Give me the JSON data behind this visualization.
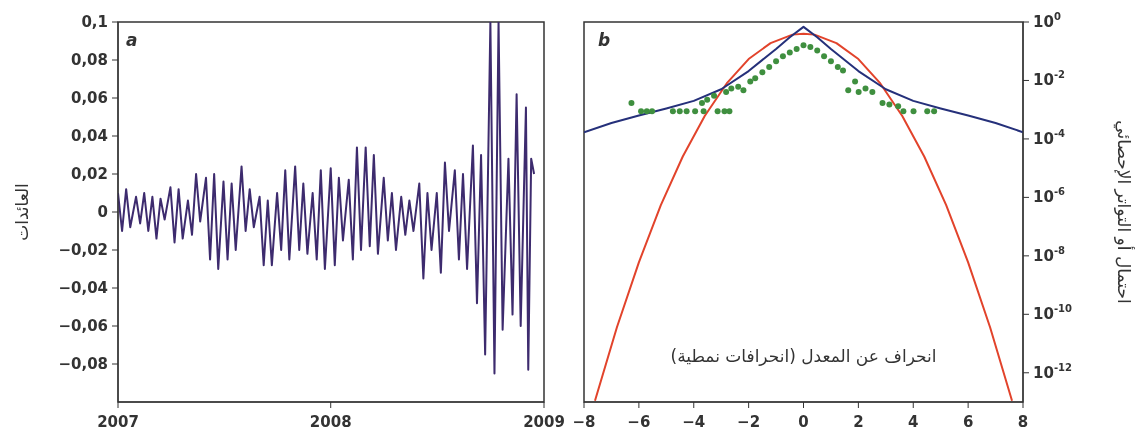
{
  "chart_data": [
    {
      "type": "line",
      "ylabel": "العائدات",
      "annotations": [
        "a"
      ],
      "xlim": [
        "2007",
        "2009"
      ],
      "xticks": [
        "2007",
        "2008",
        "2009"
      ],
      "ylim": [
        -0.1,
        0.1
      ],
      "yticks": [
        {
          "value": -0.08,
          "label": "−0,08"
        },
        {
          "value": -0.06,
          "label": "−0,06"
        },
        {
          "value": -0.04,
          "label": "−0,04"
        },
        {
          "value": -0.02,
          "label": "−0,02"
        },
        0,
        {
          "value": 0.02,
          "label": "0,02"
        },
        {
          "value": 0.04,
          "label": "0,04"
        },
        {
          "value": 0.06,
          "label": "0,06"
        },
        {
          "value": 0.08,
          "label": "0,08"
        },
        {
          "value": 0.1,
          "label": "0,1"
        }
      ],
      "series": [
        {
          "color": "#3d2b6e",
          "x": [
            "2007-01-01",
            "2007-01-08",
            "2007-01-15",
            "2007-01-22",
            "2007-02-01",
            "2007-02-08",
            "2007-02-15",
            "2007-02-22",
            "2007-03-01",
            "2007-03-08",
            "2007-03-15",
            "2007-03-22",
            "2007-04-01",
            "2007-04-08",
            "2007-04-15",
            "2007-04-22",
            "2007-05-01",
            "2007-05-08",
            "2007-05-15",
            "2007-05-22",
            "2007-06-01",
            "2007-06-08",
            "2007-06-15",
            "2007-06-22",
            "2007-07-01",
            "2007-07-08",
            "2007-07-15",
            "2007-07-22",
            "2007-08-01",
            "2007-08-08",
            "2007-08-15",
            "2007-08-22",
            "2007-09-01",
            "2007-09-08",
            "2007-09-15",
            "2007-09-22",
            "2007-10-01",
            "2007-10-08",
            "2007-10-15",
            "2007-10-22",
            "2007-11-01",
            "2007-11-08",
            "2007-11-15",
            "2007-11-22",
            "2007-12-01",
            "2007-12-08",
            "2007-12-15",
            "2007-12-22",
            "2008-01-01",
            "2008-01-08",
            "2008-01-15",
            "2008-01-22",
            "2008-02-01",
            "2008-02-08",
            "2008-02-15",
            "2008-02-22",
            "2008-03-01",
            "2008-03-08",
            "2008-03-15",
            "2008-03-22",
            "2008-04-01",
            "2008-04-08",
            "2008-04-15",
            "2008-04-22",
            "2008-05-01",
            "2008-05-08",
            "2008-05-15",
            "2008-05-22",
            "2008-06-01",
            "2008-06-08",
            "2008-06-15",
            "2008-06-22",
            "2008-07-01",
            "2008-07-08",
            "2008-07-15",
            "2008-07-22",
            "2008-08-01",
            "2008-08-08",
            "2008-08-15",
            "2008-08-22",
            "2008-09-01",
            "2008-09-08",
            "2008-09-15",
            "2008-09-22",
            "2008-10-01",
            "2008-10-08",
            "2008-10-15",
            "2008-10-22",
            "2008-11-01",
            "2008-11-08",
            "2008-11-15",
            "2008-11-22",
            "2008-12-01",
            "2008-12-05",
            "2008-12-10",
            "2008-12-15"
          ],
          "values": [
            0.01,
            -0.01,
            0.012,
            -0.008,
            0.008,
            -0.006,
            0.01,
            -0.01,
            0.008,
            -0.014,
            0.007,
            -0.004,
            0.013,
            -0.016,
            0.012,
            -0.014,
            0.006,
            -0.012,
            0.02,
            -0.005,
            0.018,
            -0.025,
            0.02,
            -0.03,
            0.016,
            -0.025,
            0.015,
            -0.02,
            0.024,
            -0.01,
            0.012,
            -0.008,
            0.008,
            -0.028,
            0.006,
            -0.028,
            0.01,
            -0.02,
            0.022,
            -0.025,
            0.024,
            -0.02,
            0.015,
            -0.022,
            0.01,
            -0.025,
            0.022,
            -0.03,
            0.023,
            -0.028,
            0.018,
            -0.015,
            0.017,
            -0.025,
            0.034,
            -0.02,
            0.034,
            -0.018,
            0.03,
            -0.022,
            0.018,
            -0.015,
            0.01,
            -0.02,
            0.008,
            -0.012,
            0.006,
            -0.01,
            0.015,
            -0.035,
            0.01,
            -0.02,
            0.01,
            -0.032,
            0.026,
            -0.01,
            0.022,
            -0.025,
            0.02,
            -0.03,
            0.035,
            -0.048,
            0.03,
            -0.075,
            0.1,
            -0.085,
            0.1,
            -0.062,
            0.028,
            -0.054,
            0.062,
            -0.06,
            0.055,
            -0.083,
            0.028,
            0.02
          ]
        }
      ]
    },
    {
      "type": "line",
      "log": "y",
      "xlabel": "انحراف عن المعدل (انحرافات نمطية)",
      "ylabel": "احتمال أو التواتر الإحصائي",
      "annotations": [
        "b"
      ],
      "xlim": [
        -8,
        8
      ],
      "xticks": [
        {
          "value": -8,
          "label": "−8"
        },
        {
          "value": -6,
          "label": "−6"
        },
        {
          "value": -4,
          "label": "−4"
        },
        {
          "value": -2,
          "label": "−2"
        },
        0,
        2,
        4,
        6,
        8
      ],
      "ylim": [
        1e-13,
        1
      ],
      "yticks": [
        {
          "value": 1,
          "label": "10$^{0}$"
        },
        {
          "value": 0.01,
          "label": "10$^{-2}$"
        },
        {
          "value": 0.0001,
          "label": "10$^{-4}$"
        },
        {
          "value": 1e-06,
          "label": "10$^{-6}$"
        },
        {
          "value": 1e-08,
          "label": "10$^{-8}$"
        },
        {
          "value": 1e-10,
          "label": "10$^{-10}$"
        },
        {
          "value": 1e-12,
          "label": "10$^{-12}$"
        }
      ],
      "series": [
        {
          "color": "#e2432b",
          "x": [
            -7.6,
            -6.8,
            -6.0,
            -5.2,
            -4.4,
            -3.6,
            -2.8,
            -2.0,
            -1.2,
            -0.4,
            0,
            0.4,
            1.2,
            2.0,
            2.8,
            3.6,
            4.4,
            5.2,
            6.0,
            6.8,
            7.6
          ],
          "values": [
            1.1e-13,
            3.6e-11,
            6e-09,
            5.4e-07,
            2.5e-05,
            0.00061,
            0.0079,
            0.054,
            0.19,
            0.37,
            0.4,
            0.37,
            0.19,
            0.054,
            0.0079,
            0.00061,
            2.5e-05,
            5.4e-07,
            6e-09,
            3.6e-11,
            1.1e-13
          ]
        },
        {
          "color": "#25307a",
          "x": [
            -8,
            -7,
            -6,
            -5,
            -4,
            -3,
            -2,
            -1,
            -0.5,
            0,
            0.5,
            1,
            2,
            3,
            4,
            5,
            6,
            7,
            8
          ],
          "values": [
            0.00017,
            0.00035,
            0.00063,
            0.0011,
            0.002,
            0.005,
            0.021,
            0.12,
            0.3,
            0.68,
            0.3,
            0.12,
            0.021,
            0.005,
            0.002,
            0.0011,
            0.00063,
            0.00035,
            0.00017
          ]
        },
        {
          "type": "scatter",
          "color": "#3f8f3f",
          "x": [
            -6.27,
            -5.92,
            -5.71,
            -5.52,
            -4.76,
            -4.51,
            -4.26,
            -3.95,
            -3.7,
            -3.64,
            -3.51,
            -3.26,
            -3.13,
            -2.88,
            -2.82,
            -2.7,
            -2.63,
            -2.38,
            -2.19,
            -1.94,
            -1.76,
            -1.5,
            -1.25,
            -1.0,
            -0.75,
            -0.5,
            -0.25,
            0,
            0.25,
            0.5,
            0.75,
            1.0,
            1.25,
            1.44,
            1.63,
            1.88,
            2.01,
            2.26,
            2.51,
            2.88,
            3.13,
            3.45,
            3.64,
            4.01,
            4.51,
            4.76
          ],
          "values": [
            0.0017,
            0.00089,
            0.00089,
            0.00089,
            0.00089,
            0.00089,
            0.00089,
            0.00089,
            0.0017,
            0.00089,
            0.0022,
            0.003,
            0.00089,
            0.00089,
            0.004,
            0.00089,
            0.0053,
            0.0061,
            0.0046,
            0.0093,
            0.012,
            0.019,
            0.029,
            0.045,
            0.068,
            0.091,
            0.12,
            0.16,
            0.14,
            0.105,
            0.068,
            0.045,
            0.029,
            0.022,
            0.0046,
            0.0093,
            0.004,
            0.0053,
            0.004,
            0.0017,
            0.0015,
            0.0013,
            0.00089,
            0.00089,
            0.00089,
            0.00089
          ]
        }
      ]
    }
  ]
}
